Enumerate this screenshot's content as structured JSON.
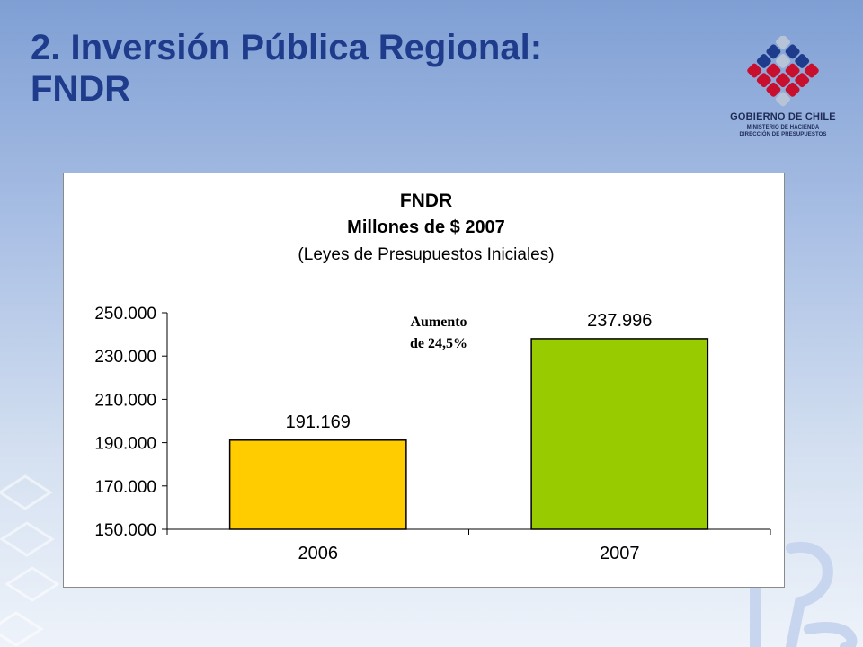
{
  "slide": {
    "title_line1": "2. Inversión Pública Regional:",
    "title_line2": "FNDR"
  },
  "logo": {
    "name": "GOBIERNO DE CHILE",
    "line2": "MINISTERIO DE HACIENDA",
    "line3": "DIRECCIÓN DE PRESUPUESTOS",
    "icon": "chile-government-logo"
  },
  "colors": {
    "title": "#1f3c8c",
    "bar_2006": "#ffcc00",
    "bar_2007": "#99cc00"
  },
  "chart_data": {
    "type": "bar",
    "title": "FNDR",
    "subtitle": "Millones de $ 2007",
    "subtitle2": "(Leyes de Presupuestos Iniciales)",
    "xlabel": "",
    "ylabel": "",
    "categories": [
      "2006",
      "2007"
    ],
    "values": [
      191169,
      237996
    ],
    "value_labels": [
      "191.169",
      "237.996"
    ],
    "bar_colors": [
      "#ffcc00",
      "#99cc00"
    ],
    "ylim": [
      150000,
      250000
    ],
    "yticks": [
      150000,
      170000,
      190000,
      210000,
      230000,
      250000
    ],
    "ytick_labels": [
      "150.000",
      "170.000",
      "190.000",
      "210.000",
      "230.000",
      "250.000"
    ],
    "grid": false,
    "annotation": {
      "line1": "Aumento",
      "line2": "de 24,5%"
    }
  }
}
